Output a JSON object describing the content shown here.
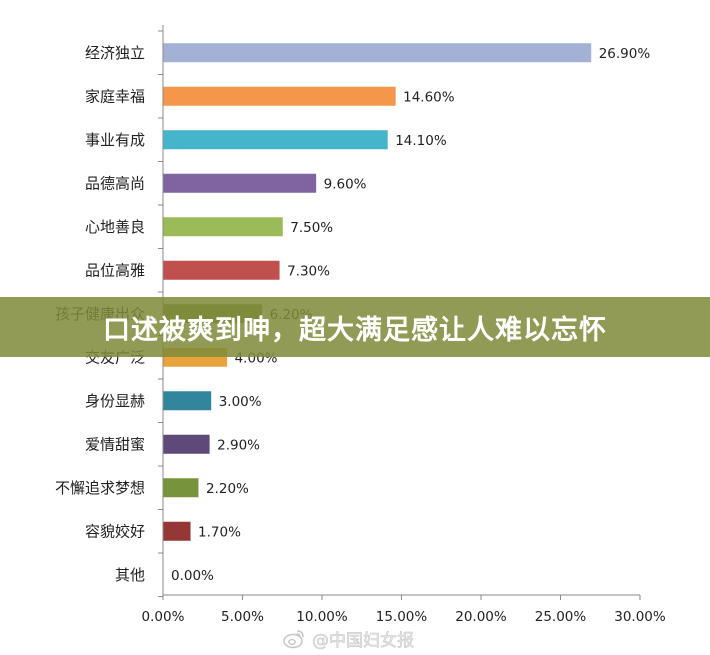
{
  "chart_data": {
    "type": "bar",
    "orientation": "horizontal",
    "categories": [
      "经济独立",
      "家庭幸福",
      "事业有成",
      "品德高尚",
      "心地善良",
      "品位高雅",
      "孩子健康出众",
      "交友广泛",
      "身份显赫",
      "爱情甜蜜",
      "不懈追求梦想",
      "容貌姣好",
      "其他"
    ],
    "values": [
      26.9,
      14.6,
      14.1,
      9.6,
      7.5,
      7.3,
      6.2,
      4.0,
      3.0,
      2.9,
      2.2,
      1.7,
      0.0
    ],
    "value_labels": [
      "26.90%",
      "14.60%",
      "14.10%",
      "9.60%",
      "7.50%",
      "7.30%",
      "6.20%",
      "4.00%",
      "3.00%",
      "2.90%",
      "2.20%",
      "1.70%",
      "0.00%"
    ],
    "colors": [
      "#a3b1d4",
      "#f5974a",
      "#45b5cc",
      "#8064a2",
      "#9bbb59",
      "#c0504d",
      "#6a8c3e",
      "#e8a33c",
      "#31859c",
      "#5f497a",
      "#77933c",
      "#953735",
      "#4f81bd"
    ],
    "xticks": [
      "0.00%",
      "5.00%",
      "10.00%",
      "15.00%",
      "20.00%",
      "25.00%",
      "30.00%"
    ],
    "xlim": [
      0,
      30
    ],
    "grid": false,
    "title": "",
    "xlabel": "",
    "ylabel": ""
  },
  "banner": {
    "text": "口述被爽到呻，超大满足感让人难以忘怀"
  },
  "watermark": {
    "text": "@中国妇女报"
  }
}
